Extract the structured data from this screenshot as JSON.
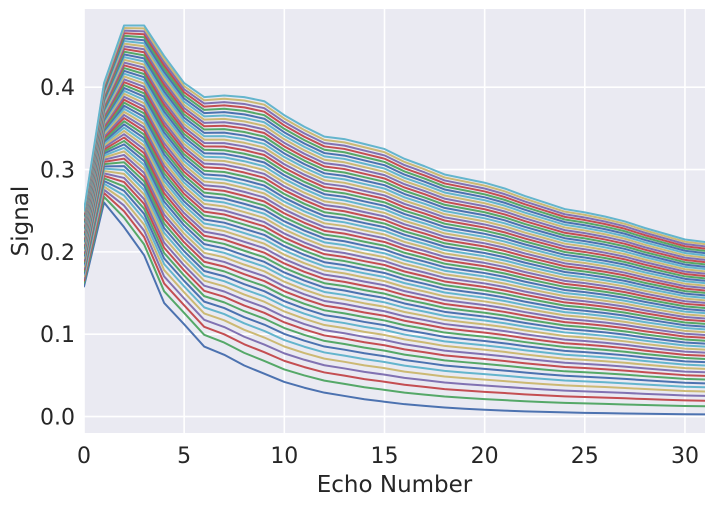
{
  "chart_data": {
    "type": "line",
    "title": "",
    "xlabel": "Echo Number",
    "ylabel": "Signal",
    "xlim": [
      0,
      31
    ],
    "ylim": [
      -0.02,
      0.495
    ],
    "xticks": [
      0,
      5,
      10,
      15,
      20,
      25,
      30
    ],
    "xtick_labels": [
      "0",
      "5",
      "10",
      "15",
      "20",
      "25",
      "30"
    ],
    "yticks": [
      0.0,
      0.1,
      0.2,
      0.3,
      0.4
    ],
    "ytick_labels": [
      "0.0",
      "0.1",
      "0.2",
      "0.3",
      "0.4"
    ],
    "grid": true,
    "style": "seaborn-darkgrid",
    "background_color": "#EAEAF2",
    "grid_color": "#FFFFFF",
    "series_colors": [
      "#4C72B0",
      "#55A868",
      "#C44E52",
      "#8172B2",
      "#CCB974",
      "#64B5CD"
    ],
    "x": [
      0,
      1,
      2,
      3,
      4,
      5,
      6,
      7,
      8,
      9,
      10,
      11,
      12,
      13,
      14,
      15,
      16,
      17,
      18,
      19,
      20,
      21,
      22,
      23,
      24,
      25,
      26,
      27,
      28,
      29,
      30,
      31
    ],
    "series_family": {
      "count": 60,
      "first": {
        "values": [
          0.158,
          0.26,
          0.23,
          0.196,
          0.138,
          0.112,
          0.085,
          0.075,
          0.062,
          0.052,
          0.042,
          0.035,
          0.029,
          0.025,
          0.021,
          0.018,
          0.015,
          0.013,
          0.011,
          0.0095,
          0.0082,
          0.0072,
          0.0063,
          0.0056,
          0.005,
          0.0045,
          0.0041,
          0.0037,
          0.0034,
          0.0031,
          0.0028,
          0.0026
        ]
      },
      "last": {
        "values": [
          0.25,
          0.405,
          0.475,
          0.475,
          0.438,
          0.405,
          0.388,
          0.39,
          0.388,
          0.383,
          0.366,
          0.352,
          0.34,
          0.337,
          0.331,
          0.325,
          0.313,
          0.304,
          0.294,
          0.289,
          0.284,
          0.277,
          0.268,
          0.26,
          0.252,
          0.248,
          0.243,
          0.237,
          0.229,
          0.222,
          0.215,
          0.212
        ]
      },
      "interpolation_exponent": 0.75
    }
  }
}
